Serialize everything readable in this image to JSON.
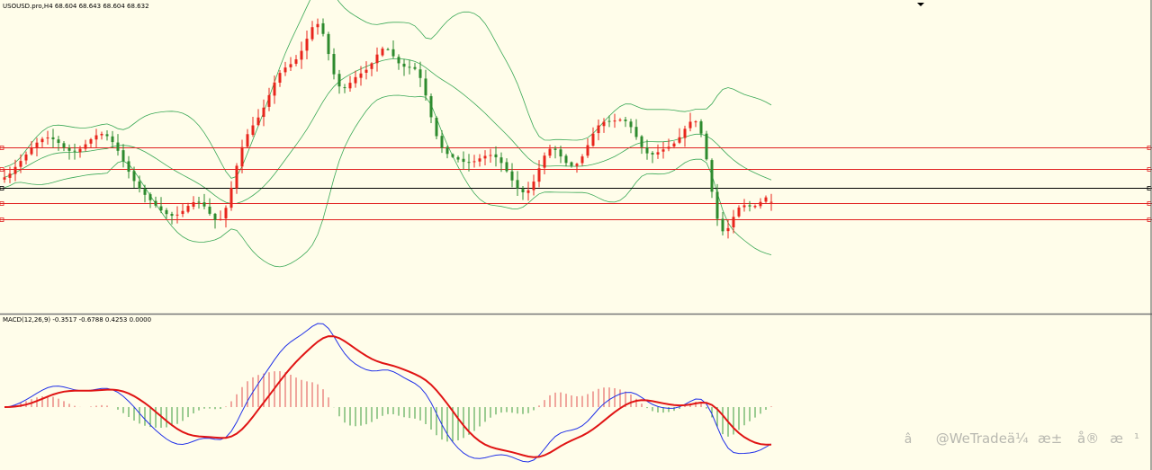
{
  "colors": {
    "background": "#fffdea",
    "bull": "#e8251c",
    "bear": "#2e8b2e",
    "bollinger": "#3aa856",
    "level_red": "#e02020",
    "level_black": "#000000",
    "macd_line": "#2030e8",
    "signal_line": "#e01414",
    "hist_pos": "#e05050",
    "hist_neg": "#3a9a3a",
    "watermark": "#b8b8b0"
  },
  "header": {
    "symbol_line": "USOUSD.pro,H4  68.604 68.643 68.604 68.632"
  },
  "macd_panel": {
    "label": "MACD(12,26,9) -0.3517 -0.6788 0.4253 0.0000"
  },
  "watermark": {
    "icon": "â",
    "text": "@WeTradeä¼æ± å®æ¹"
  },
  "chart_data": [
    {
      "type": "candlestick",
      "title": "USOUSD.pro,H4",
      "ohlc_last": {
        "open": 68.604,
        "high": 68.643,
        "low": 68.604,
        "close": 68.632
      },
      "price_range": [
        64.8,
        75.4
      ],
      "bars": 170,
      "indicators": [
        "Bollinger Bands"
      ],
      "horizontal_levels": [
        {
          "price": 70.55,
          "color": "red"
        },
        {
          "price": 69.8,
          "color": "red"
        },
        {
          "price": 69.13,
          "color": "black"
        },
        {
          "price": 68.58,
          "color": "red"
        },
        {
          "price": 68.0,
          "color": "red"
        }
      ],
      "close_series": [
        69.5,
        69.63,
        69.87,
        70.08,
        70.31,
        70.54,
        70.73,
        70.86,
        70.91,
        70.85,
        70.72,
        70.55,
        70.44,
        70.42,
        70.51,
        70.67,
        70.85,
        70.99,
        71.04,
        70.96,
        70.75,
        70.44,
        70.07,
        69.7,
        69.37,
        69.1,
        68.88,
        68.69,
        68.5,
        68.33,
        68.2,
        68.14,
        68.18,
        68.31,
        68.49,
        68.62,
        68.63,
        68.47,
        68.21,
        67.99,
        68.02,
        68.42,
        69.13,
        69.91,
        70.57,
        71.03,
        71.34,
        71.62,
        71.97,
        72.41,
        72.86,
        73.2,
        73.39,
        73.51,
        73.68,
        73.98,
        74.41,
        74.82,
        74.93,
        74.58,
        73.87,
        73.15,
        72.72,
        72.67,
        72.85,
        73.05,
        73.18,
        73.31,
        73.54,
        73.85,
        74.06,
        74.03,
        73.79,
        73.54,
        73.42,
        73.41,
        73.34,
        73.02,
        72.4,
        71.63,
        70.96,
        70.54,
        70.33,
        70.22,
        70.13,
        70.05,
        70.03,
        70.07,
        70.17,
        70.26,
        70.29,
        70.21,
        70.01,
        69.72,
        69.39,
        69.11,
        68.97,
        69.04,
        69.35,
        69.82,
        70.27,
        70.51,
        70.47,
        70.24,
        70.01,
        69.91,
        69.98,
        70.24,
        70.64,
        71.05,
        71.34,
        71.47,
        71.49,
        71.51,
        71.54,
        71.49,
        71.28,
        70.93,
        70.57,
        70.35,
        70.31,
        70.39,
        70.49,
        70.58,
        70.7,
        70.92,
        71.22,
        71.47,
        71.48,
        71.05,
        70.14,
        68.99,
        68.03,
        67.59,
        67.7,
        68.1,
        68.43,
        68.51,
        68.47,
        68.49,
        68.63,
        68.79,
        68.86
      ]
    },
    {
      "type": "macd",
      "title": "MACD(12,26,9)",
      "params": [
        12,
        26,
        9
      ],
      "values": {
        "main": -0.3517,
        "signal": -0.6788,
        "histogram": 0.4253,
        "extra": 0.0
      }
    }
  ]
}
